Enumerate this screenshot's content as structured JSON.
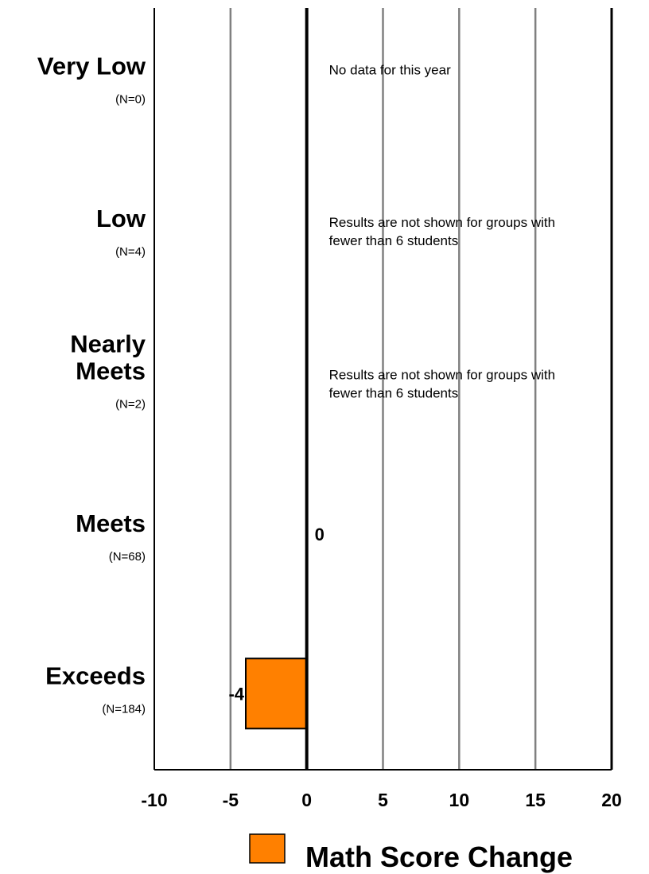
{
  "chart_data": {
    "type": "bar",
    "orientation": "horizontal",
    "categories": [
      {
        "name_lines": [
          "Very Low"
        ],
        "n_label": "(N=0)",
        "value": null,
        "value_label": "",
        "note_lines": [
          "No data for this year"
        ]
      },
      {
        "name_lines": [
          "Low"
        ],
        "n_label": "(N=4)",
        "value": null,
        "value_label": "",
        "note_lines": [
          "Results are not shown for groups with",
          "fewer than 6 students"
        ]
      },
      {
        "name_lines": [
          "Nearly",
          "Meets"
        ],
        "n_label": "(N=2)",
        "value": null,
        "value_label": "",
        "note_lines": [
          "Results are not shown for groups with",
          "fewer than 6 students"
        ]
      },
      {
        "name_lines": [
          "Meets"
        ],
        "n_label": "(N=68)",
        "value": 0,
        "value_label": "0",
        "note_lines": []
      },
      {
        "name_lines": [
          "Exceeds"
        ],
        "n_label": "(N=184)",
        "value": -4,
        "value_label": "-4",
        "note_lines": []
      }
    ],
    "series": [
      {
        "name": "Math Score Change",
        "color": "#ff8000"
      }
    ],
    "x_ticks": [
      "-10",
      "-5",
      "0",
      "5",
      "10",
      "15",
      "20"
    ],
    "xlim": [
      -10,
      20
    ],
    "grid": true,
    "legend_position": "bottom"
  }
}
